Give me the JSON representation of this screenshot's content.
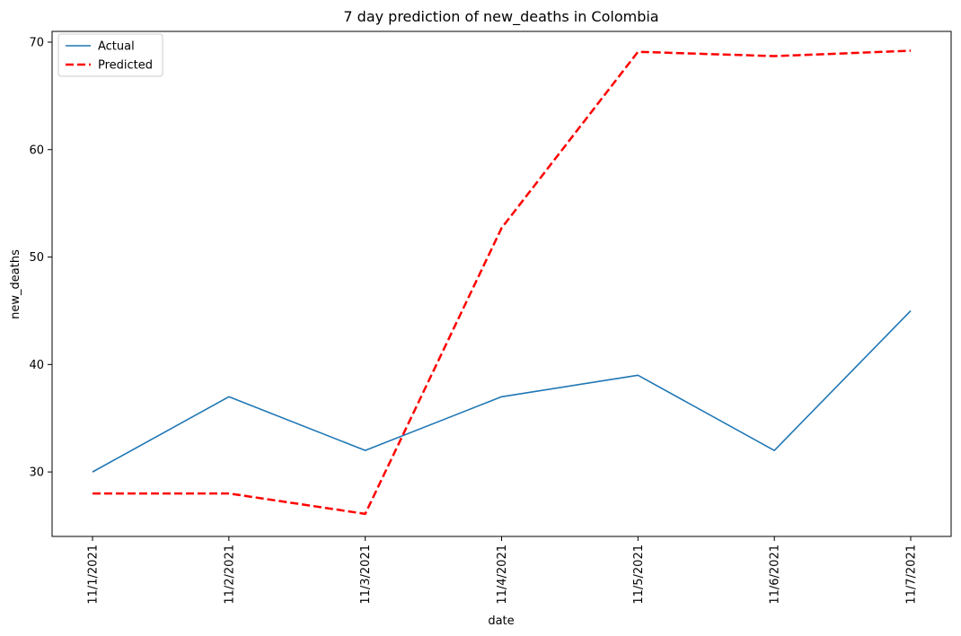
{
  "chart_data": {
    "type": "line",
    "title": "7 day prediction of new_deaths in Colombia",
    "xlabel": "date",
    "ylabel": "new_deaths",
    "categories": [
      "11/1/2021",
      "11/2/2021",
      "11/3/2021",
      "11/4/2021",
      "11/5/2021",
      "11/6/2021",
      "11/7/2021"
    ],
    "series": [
      {
        "name": "Actual",
        "values": [
          30,
          37,
          32,
          37,
          39,
          32,
          45
        ],
        "color": "#1f77b4",
        "style": "solid"
      },
      {
        "name": "Predicted",
        "values": [
          28,
          28,
          26.1,
          52.7,
          69.1,
          68.7,
          69.2
        ],
        "color": "#ff0000",
        "style": "dashed"
      }
    ],
    "ylim": [
      24,
      71
    ],
    "yticks": [
      30,
      40,
      50,
      60,
      70
    ],
    "grid": false,
    "legend_position": "top-left"
  }
}
